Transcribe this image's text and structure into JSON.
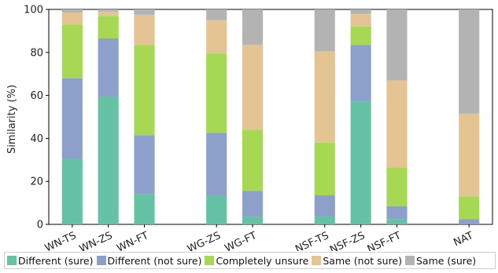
{
  "chart_data": {
    "type": "bar",
    "stacked": true,
    "ylabel": "Similarity (%)",
    "ylim": [
      0,
      100
    ],
    "yticks": [
      "0",
      "20",
      "40",
      "60",
      "80",
      "100"
    ],
    "categories": [
      "WN-TS",
      "WN-ZS",
      "WN-FT",
      "WG-ZS",
      "WG-FT",
      "NSF-TS",
      "NSF-ZS",
      "NSF-FT",
      "NAT"
    ],
    "groups": [
      [
        0,
        1,
        2
      ],
      [
        3,
        4
      ],
      [
        5,
        6,
        7
      ],
      [
        8
      ]
    ],
    "series": [
      {
        "name": "Different (sure)",
        "color": "#66c2a5",
        "values": [
          30.5,
          59.5,
          14.0,
          13.5,
          3.5,
          4.0,
          57.0,
          2.5,
          0
        ]
      },
      {
        "name": "Different (not sure)",
        "color": "#8da0cb",
        "values": [
          37.5,
          27.0,
          27.5,
          29.0,
          12.0,
          9.5,
          26.5,
          6.0,
          2.5
        ]
      },
      {
        "name": "Completely unsure",
        "color": "#a6d854",
        "values": [
          25.0,
          10.5,
          42.0,
          37.0,
          28.5,
          24.5,
          8.5,
          18.0,
          10.5
        ]
      },
      {
        "name": "Same (not sure)",
        "color": "#e5c494",
        "values": [
          5.5,
          2.0,
          14.0,
          15.5,
          39.5,
          42.5,
          6.0,
          40.5,
          38.5
        ]
      },
      {
        "name": "Same (sure)",
        "color": "#b3b3b3",
        "values": [
          1.5,
          1.0,
          2.5,
          5.0,
          16.5,
          19.5,
          2.0,
          33.0,
          48.5
        ]
      }
    ],
    "legend_position": "bottom",
    "grid": false
  }
}
